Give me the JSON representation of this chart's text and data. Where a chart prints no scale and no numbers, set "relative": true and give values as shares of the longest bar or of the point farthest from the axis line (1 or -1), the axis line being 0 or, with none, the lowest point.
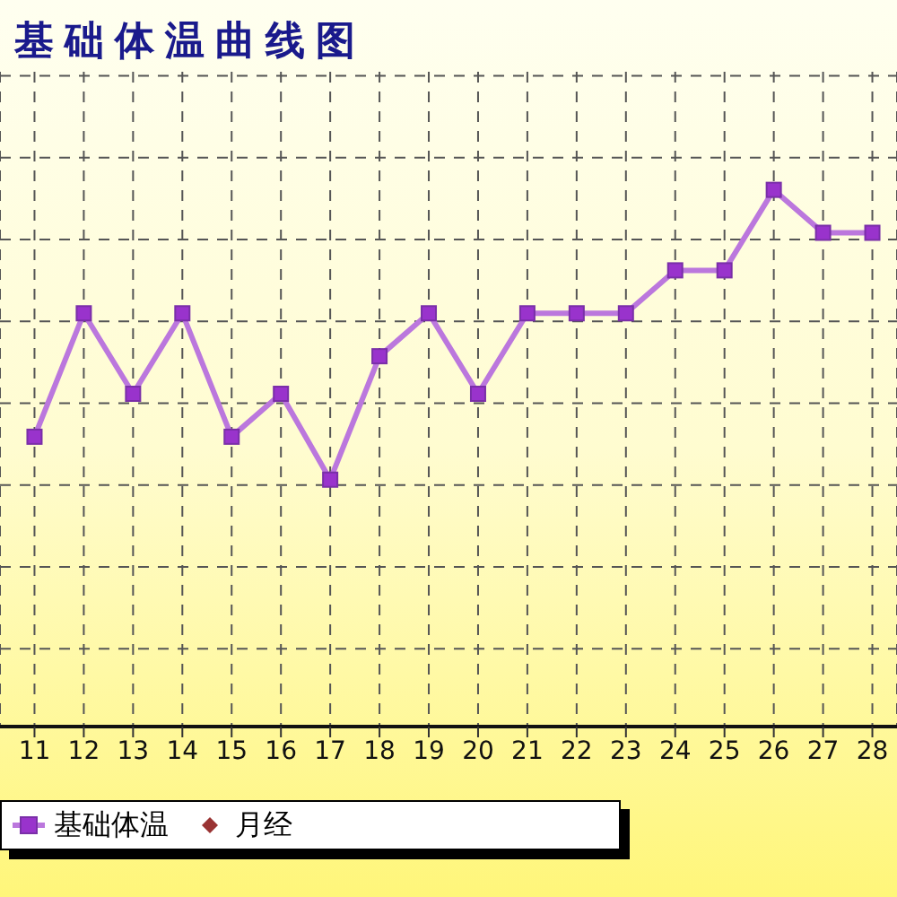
{
  "chart_data": {
    "type": "line",
    "title": "基础体温曲线图",
    "relative": true,
    "categories": [
      "11",
      "12",
      "13",
      "14",
      "15",
      "16",
      "17",
      "18",
      "19",
      "20",
      "21",
      "22",
      "23",
      "24",
      "25",
      "26",
      "27",
      "28"
    ],
    "series": [
      {
        "name": "基础体温",
        "color": "#bb77dd",
        "marker": "square",
        "values": [
          0.54,
          0.77,
          0.62,
          0.77,
          0.54,
          0.62,
          0.46,
          0.69,
          0.77,
          0.62,
          0.77,
          0.77,
          0.77,
          0.85,
          0.85,
          1,
          0.92,
          0.92
        ]
      },
      {
        "name": "月经",
        "type": "scatter",
        "color": "#993333",
        "marker": "diamond",
        "values": [
          null,
          null,
          null,
          null,
          null,
          null,
          null,
          null,
          null,
          null,
          null,
          null,
          null,
          null,
          null,
          null,
          null,
          null
        ]
      }
    ],
    "grid": true,
    "legend": "bottom left",
    "line_style": "solid"
  }
}
